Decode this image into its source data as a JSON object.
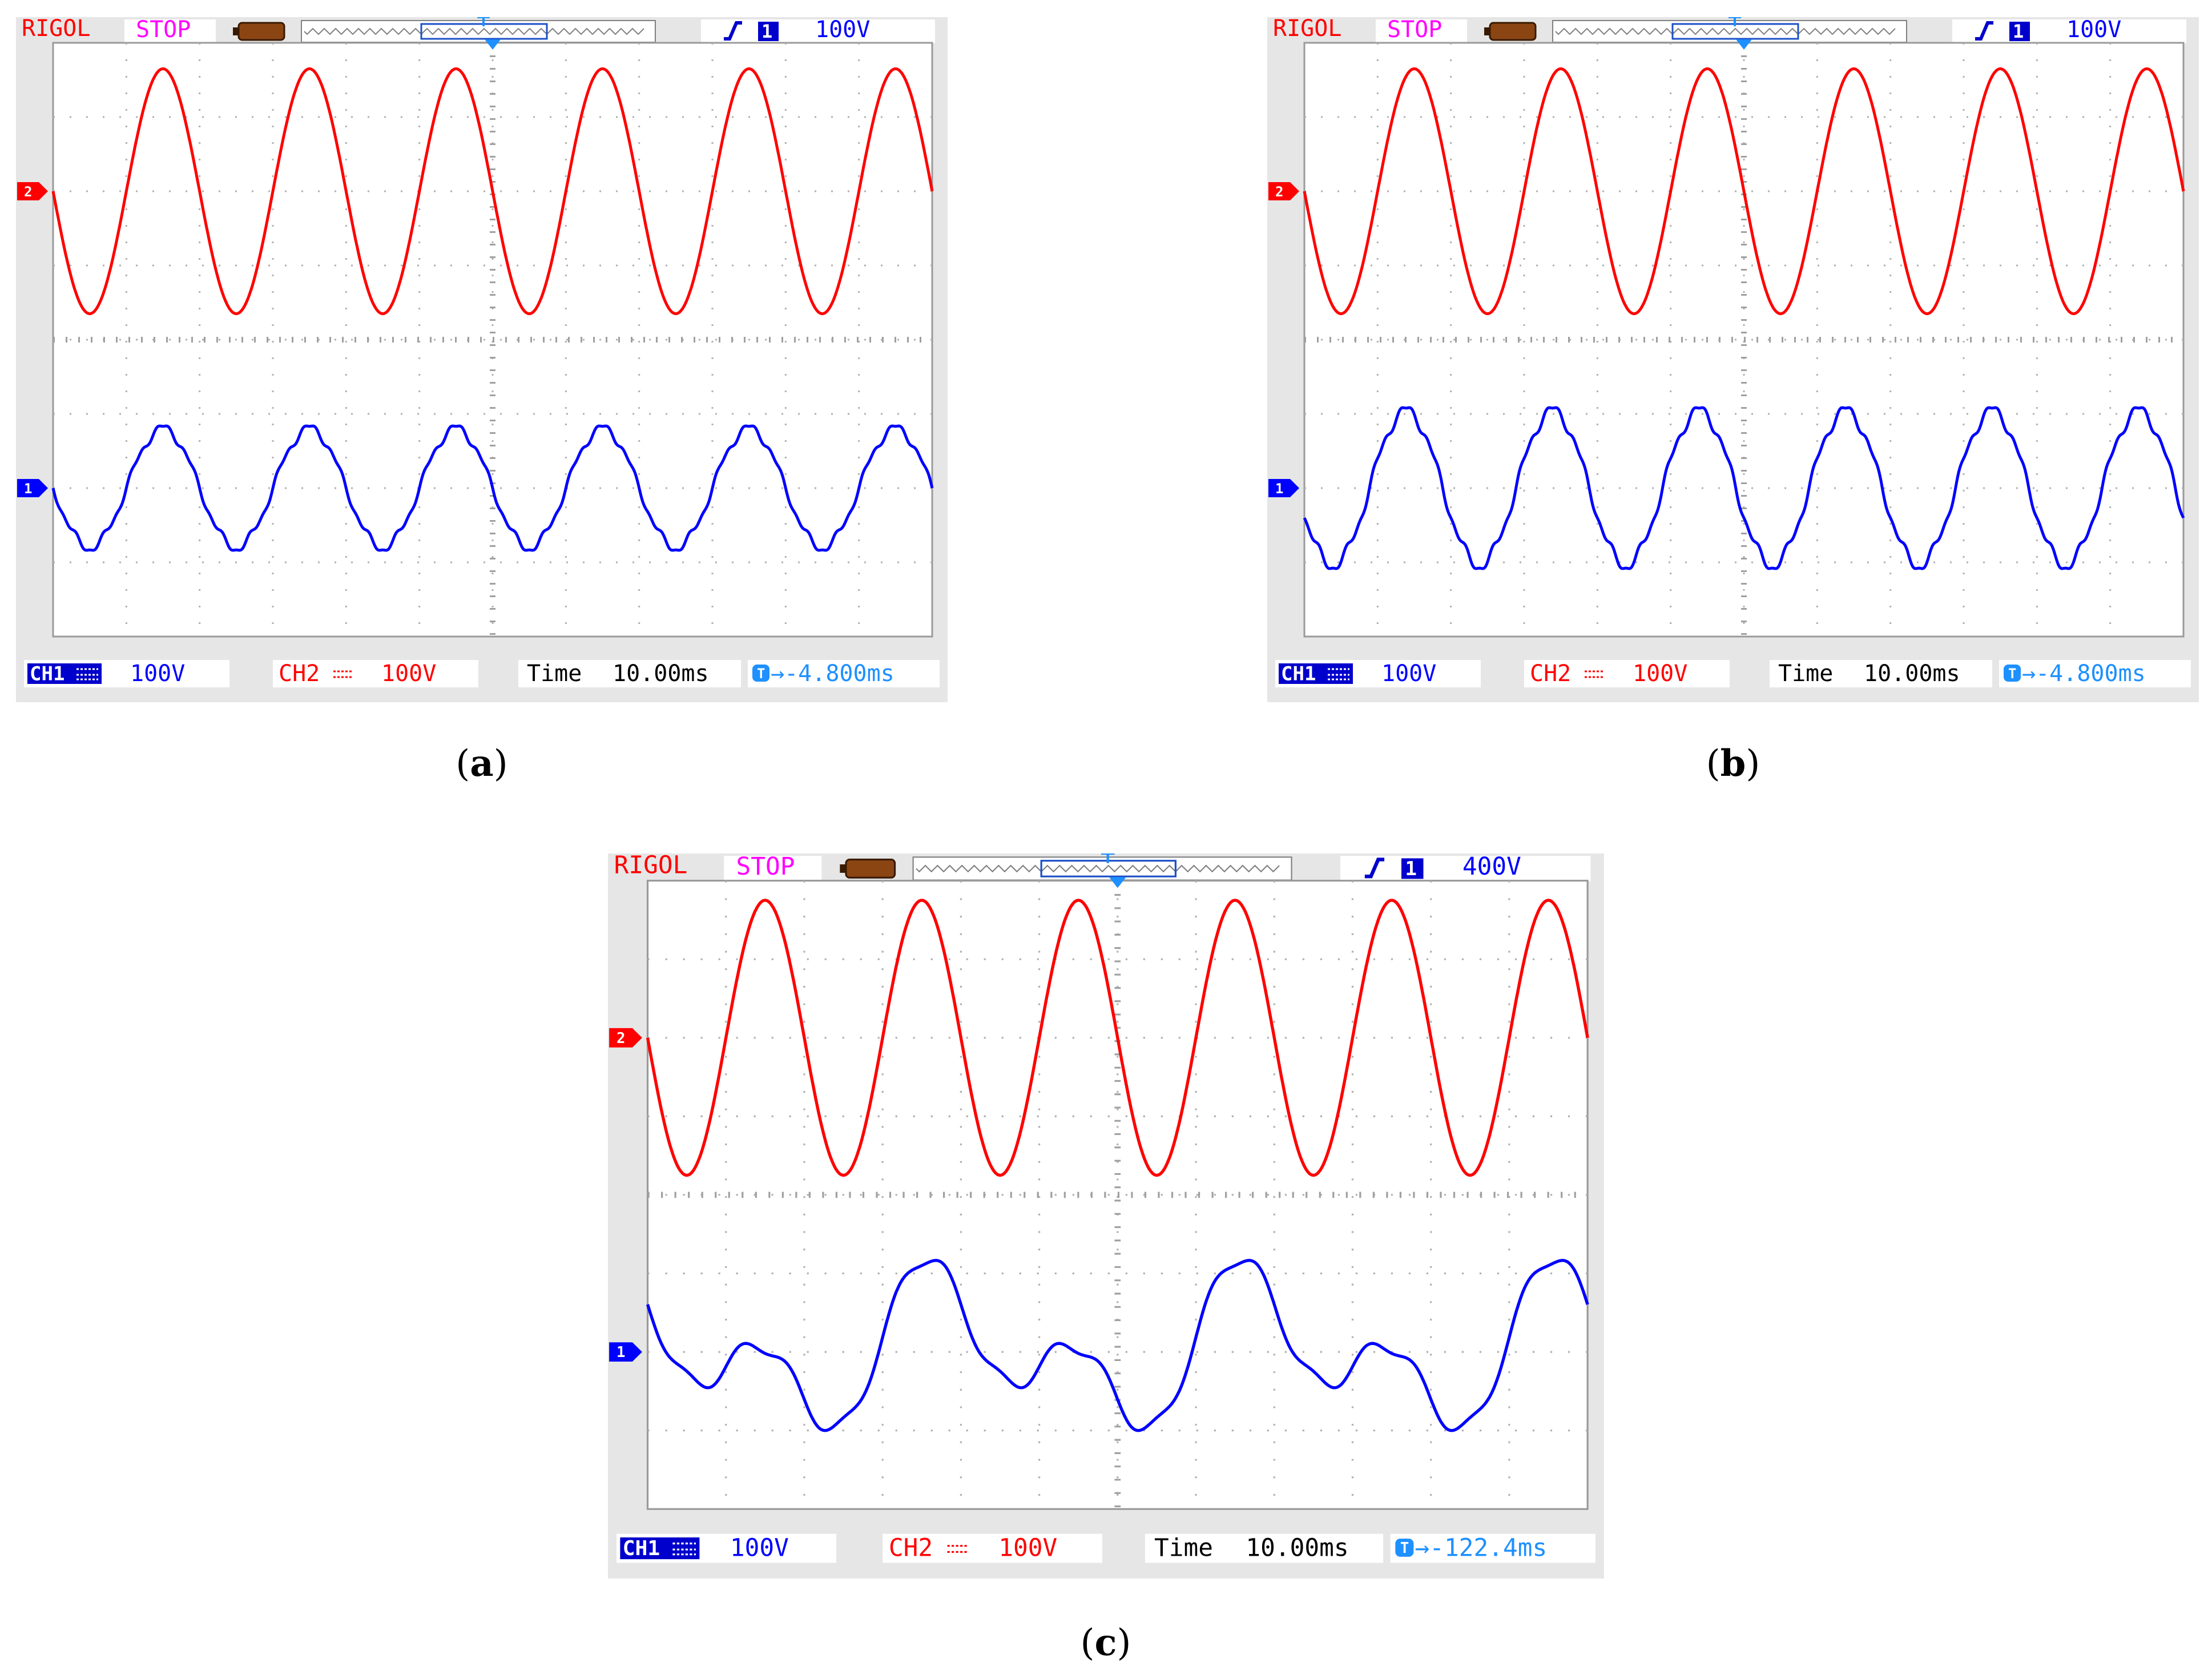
{
  "panels": [
    {
      "id": "a",
      "caption_letter": "a",
      "brand": "RIGOL",
      "status": "STOP",
      "trigger_channel": "1",
      "trigger_level": "100V",
      "ch1_label": "CH1",
      "ch1_scale": "100V",
      "ch2_label": "CH2",
      "ch2_scale": "100V",
      "time_label": "Time",
      "timebase": "10.00ms",
      "trigger_offset": "-4.800ms",
      "colors": {
        "ch1": "#0000ff",
        "ch2": "#ff0000",
        "accent": "#1e90ff"
      },
      "chart_data": {
        "type": "line",
        "grid": true,
        "grid_divisions": [
          12,
          8
        ],
        "series": [
          {
            "channel": "CH2",
            "waveform": "sine",
            "cycles": 6,
            "amplitude_div": 1.65,
            "offset_div": 2.0,
            "phase_deg": 180
          },
          {
            "channel": "CH1",
            "waveform": "sine-with-small-notches",
            "cycles": 6,
            "amplitude_div": 0.85,
            "offset_div": -2.0,
            "phase_deg": 180
          }
        ]
      }
    },
    {
      "id": "b",
      "caption_letter": "b",
      "brand": "RIGOL",
      "status": "STOP",
      "trigger_channel": "1",
      "trigger_level": "100V",
      "ch1_label": "CH1",
      "ch1_scale": "100V",
      "ch2_label": "CH2",
      "ch2_scale": "100V",
      "time_label": "Time",
      "timebase": "10.00ms",
      "trigger_offset": "-4.800ms",
      "colors": {
        "ch1": "#0000ff",
        "ch2": "#ff0000",
        "accent": "#1e90ff"
      },
      "chart_data": {
        "type": "line",
        "grid": true,
        "grid_divisions": [
          12,
          8
        ],
        "series": [
          {
            "channel": "CH2",
            "waveform": "sine",
            "cycles": 6,
            "amplitude_div": 1.65,
            "offset_div": 2.0,
            "phase_deg": 180
          },
          {
            "channel": "CH1",
            "waveform": "sine-with-small-notches",
            "cycles": 6,
            "amplitude_div": 1.1,
            "offset_div": -2.0,
            "phase_deg": 200
          }
        ]
      }
    },
    {
      "id": "c",
      "caption_letter": "c",
      "brand": "RIGOL",
      "status": "STOP",
      "trigger_channel": "1",
      "trigger_level": "400V",
      "ch1_label": "CH1",
      "ch1_scale": "100V",
      "ch2_label": "CH2",
      "ch2_scale": "100V",
      "time_label": "Time",
      "timebase": "10.00ms",
      "trigger_offset": "-122.4ms",
      "colors": {
        "ch1": "#0000ff",
        "ch2": "#ff0000",
        "accent": "#1e90ff"
      },
      "chart_data": {
        "type": "line",
        "grid": true,
        "grid_divisions": [
          12,
          8
        ],
        "series": [
          {
            "channel": "CH2",
            "waveform": "sine",
            "cycles": 6,
            "amplitude_div": 1.75,
            "offset_div": 2.0,
            "phase_deg": 180
          },
          {
            "channel": "CH1",
            "waveform": "subharmonic-modulated",
            "cycles": 6,
            "amplitude_div": 1.15,
            "offset_div": -2.0,
            "phase_deg": 180
          }
        ]
      }
    }
  ]
}
